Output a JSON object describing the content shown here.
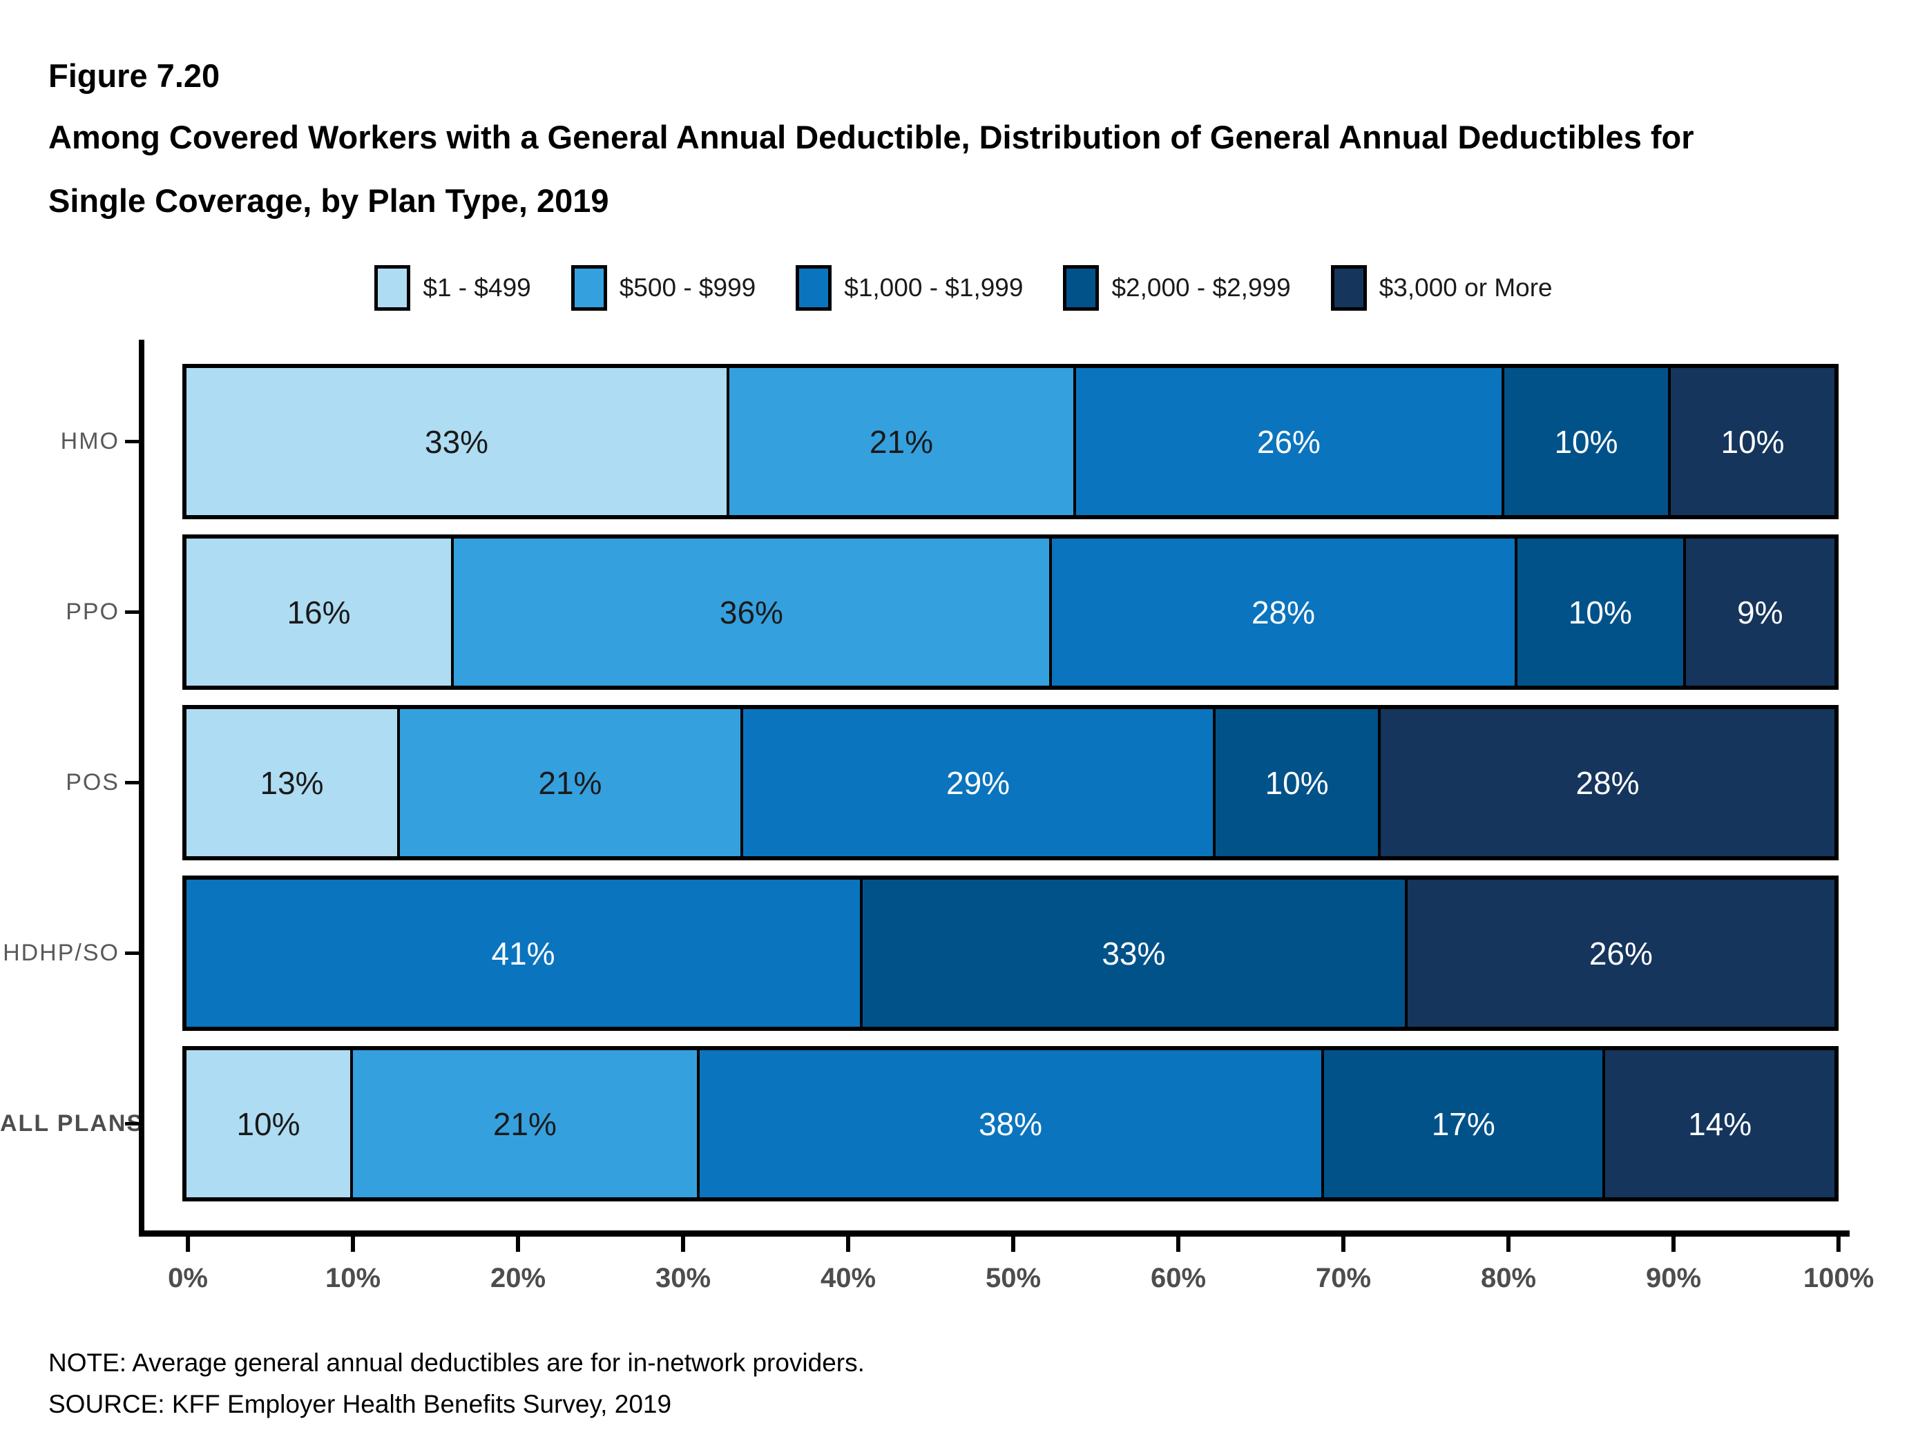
{
  "header": {
    "figure_number": "Figure 7.20",
    "title": "Among Covered Workers with a General Annual Deductible, Distribution of General Annual Deductibles for Single Coverage, by Plan Type, 2019"
  },
  "chart_data": {
    "type": "bar",
    "subtype": "horizontal-stacked",
    "title": "Among Covered Workers with a General Annual Deductible, Distribution of General Annual Deductibles for Single Coverage, by Plan Type, 2019",
    "legend_position": "top-center",
    "value_suffix": "%",
    "buckets": [
      {
        "label": "$1 - $499",
        "color": "#AEDCF2",
        "label_color": "#1a1a1a"
      },
      {
        "label": "$500 - $999",
        "color": "#35A0DE",
        "label_color": "#1a1a1a"
      },
      {
        "label": "$1,000 - $1,999",
        "color": "#0B74BE",
        "label_color": "#ffffff"
      },
      {
        "label": "$2,000 - $2,999",
        "color": "#02528A",
        "label_color": "#ffffff"
      },
      {
        "label": "$3,000 or More",
        "color": "#15355C",
        "label_color": "#ffffff"
      }
    ],
    "categories": [
      "HMO",
      "PPO",
      "POS",
      "HDHP/SO",
      "ALL PLANS"
    ],
    "bold_categories": [
      "ALL PLANS"
    ],
    "series": [
      {
        "name": "$1 - $499",
        "values": [
          33,
          16,
          13,
          null,
          10
        ]
      },
      {
        "name": "$500 - $999",
        "values": [
          21,
          36,
          21,
          null,
          21
        ]
      },
      {
        "name": "$1,000 - $1,999",
        "values": [
          26,
          28,
          29,
          41,
          38
        ]
      },
      {
        "name": "$2,000 - $2,999",
        "values": [
          10,
          10,
          10,
          33,
          17
        ]
      },
      {
        "name": "$3,000 or More",
        "values": [
          10,
          9,
          28,
          26,
          14
        ]
      }
    ],
    "x_axis": {
      "min": 0,
      "max": 100,
      "tick_step": 10,
      "tick_labels": [
        "0%",
        "10%",
        "20%",
        "30%",
        "40%",
        "50%",
        "60%",
        "70%",
        "80%",
        "90%",
        "100%"
      ]
    }
  },
  "footer": {
    "note": "NOTE: Average general annual deductibles are for in-network providers.",
    "source": "SOURCE: KFF Employer Health Benefits Survey, 2019"
  }
}
